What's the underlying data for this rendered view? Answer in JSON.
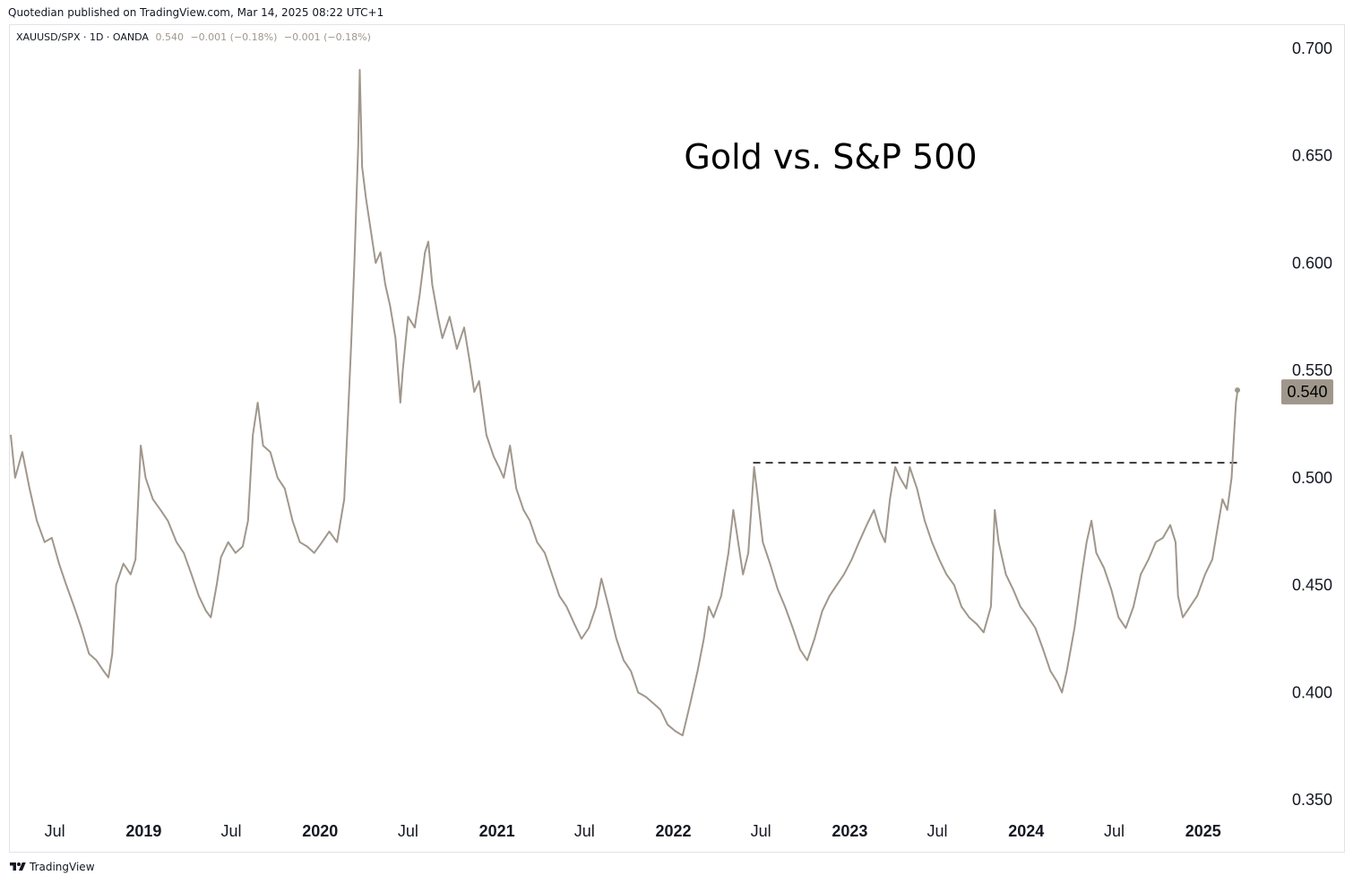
{
  "header": {
    "publisher": "Quotedian published on TradingView.com, Mar 14, 2025 08:22 UTC+1"
  },
  "legend": {
    "symbol": "XAUUSD/SPX · 1D · OANDA",
    "last": "0.540",
    "change1": "−0.001 (−0.18%)",
    "change2": "−0.001 (−0.18%)"
  },
  "footer": {
    "brand": "TradingView",
    "logo_icon": "tradingview-logo-icon"
  },
  "colors": {
    "line": "#a0978c",
    "last_badge_bg": "#a0978c",
    "axis_text": "#131722"
  },
  "chart_data": {
    "type": "line",
    "title": "Gold vs. S&P 500",
    "xlabel": "",
    "ylabel": "",
    "ylim": [
      0.33,
      0.71
    ],
    "yticks": [
      0.35,
      0.4,
      0.45,
      0.5,
      0.55,
      0.6,
      0.65,
      0.7
    ],
    "ytick_labels": [
      "0.350",
      "0.400",
      "0.450",
      "0.500",
      "0.550",
      "0.600",
      "0.650",
      "0.700"
    ],
    "xlim": [
      "2018-04-01",
      "2025-05-15"
    ],
    "xticks": [
      {
        "date": "2018-07-01",
        "label": "Jul",
        "bold": false
      },
      {
        "date": "2019-01-01",
        "label": "2019",
        "bold": true
      },
      {
        "date": "2019-07-01",
        "label": "Jul",
        "bold": false
      },
      {
        "date": "2020-01-01",
        "label": "2020",
        "bold": true
      },
      {
        "date": "2020-07-01",
        "label": "Jul",
        "bold": false
      },
      {
        "date": "2021-01-01",
        "label": "2021",
        "bold": true
      },
      {
        "date": "2021-07-01",
        "label": "Jul",
        "bold": false
      },
      {
        "date": "2022-01-01",
        "label": "2022",
        "bold": true
      },
      {
        "date": "2022-07-01",
        "label": "Jul",
        "bold": false
      },
      {
        "date": "2023-01-01",
        "label": "2023",
        "bold": true
      },
      {
        "date": "2023-07-01",
        "label": "Jul",
        "bold": false
      },
      {
        "date": "2024-01-01",
        "label": "2024",
        "bold": true
      },
      {
        "date": "2024-07-01",
        "label": "Jul",
        "bold": false
      },
      {
        "date": "2025-01-01",
        "label": "2025",
        "bold": true
      }
    ],
    "last_value_label": "0.540",
    "reference_line": {
      "y": 0.507,
      "x_start": "2022-06-15",
      "x_end": "2025-03-20",
      "style": "dashed"
    },
    "series": [
      {
        "points": [
          [
            "2018-04-01",
            0.52
          ],
          [
            "2018-04-10",
            0.5
          ],
          [
            "2018-04-25",
            0.512
          ],
          [
            "2018-05-10",
            0.495
          ],
          [
            "2018-05-25",
            0.48
          ],
          [
            "2018-06-10",
            0.47
          ],
          [
            "2018-06-25",
            0.472
          ],
          [
            "2018-07-10",
            0.46
          ],
          [
            "2018-07-25",
            0.45
          ],
          [
            "2018-08-10",
            0.44
          ],
          [
            "2018-08-25",
            0.43
          ],
          [
            "2018-09-10",
            0.418
          ],
          [
            "2018-09-25",
            0.415
          ],
          [
            "2018-10-10",
            0.41
          ],
          [
            "2018-10-20",
            0.407
          ],
          [
            "2018-10-28",
            0.418
          ],
          [
            "2018-11-05",
            0.45
          ],
          [
            "2018-11-20",
            0.46
          ],
          [
            "2018-12-05",
            0.455
          ],
          [
            "2018-12-15",
            0.462
          ],
          [
            "2018-12-26",
            0.515
          ],
          [
            "2019-01-05",
            0.5
          ],
          [
            "2019-01-20",
            0.49
          ],
          [
            "2019-02-05",
            0.485
          ],
          [
            "2019-02-20",
            0.48
          ],
          [
            "2019-03-10",
            0.47
          ],
          [
            "2019-03-25",
            0.465
          ],
          [
            "2019-04-10",
            0.455
          ],
          [
            "2019-04-25",
            0.445
          ],
          [
            "2019-05-10",
            0.438
          ],
          [
            "2019-05-20",
            0.435
          ],
          [
            "2019-06-01",
            0.45
          ],
          [
            "2019-06-10",
            0.463
          ],
          [
            "2019-06-25",
            0.47
          ],
          [
            "2019-07-10",
            0.465
          ],
          [
            "2019-07-25",
            0.468
          ],
          [
            "2019-08-05",
            0.48
          ],
          [
            "2019-08-15",
            0.52
          ],
          [
            "2019-08-25",
            0.535
          ],
          [
            "2019-09-05",
            0.515
          ],
          [
            "2019-09-20",
            0.512
          ],
          [
            "2019-10-05",
            0.5
          ],
          [
            "2019-10-20",
            0.495
          ],
          [
            "2019-11-05",
            0.48
          ],
          [
            "2019-11-20",
            0.47
          ],
          [
            "2019-12-05",
            0.468
          ],
          [
            "2019-12-20",
            0.465
          ],
          [
            "2020-01-05",
            0.47
          ],
          [
            "2020-01-20",
            0.475
          ],
          [
            "2020-02-05",
            0.47
          ],
          [
            "2020-02-20",
            0.49
          ],
          [
            "2020-02-28",
            0.53
          ],
          [
            "2020-03-05",
            0.56
          ],
          [
            "2020-03-12",
            0.6
          ],
          [
            "2020-03-20",
            0.655
          ],
          [
            "2020-03-23",
            0.69
          ],
          [
            "2020-03-28",
            0.645
          ],
          [
            "2020-04-05",
            0.63
          ],
          [
            "2020-04-15",
            0.615
          ],
          [
            "2020-04-25",
            0.6
          ],
          [
            "2020-05-05",
            0.605
          ],
          [
            "2020-05-15",
            0.59
          ],
          [
            "2020-05-25",
            0.58
          ],
          [
            "2020-06-05",
            0.565
          ],
          [
            "2020-06-15",
            0.535
          ],
          [
            "2020-06-20",
            0.55
          ],
          [
            "2020-07-01",
            0.575
          ],
          [
            "2020-07-15",
            0.57
          ],
          [
            "2020-07-25",
            0.585
          ],
          [
            "2020-08-05",
            0.605
          ],
          [
            "2020-08-12",
            0.61
          ],
          [
            "2020-08-20",
            0.59
          ],
          [
            "2020-09-01",
            0.575
          ],
          [
            "2020-09-10",
            0.565
          ],
          [
            "2020-09-25",
            0.575
          ],
          [
            "2020-10-10",
            0.56
          ],
          [
            "2020-10-25",
            0.57
          ],
          [
            "2020-11-05",
            0.555
          ],
          [
            "2020-11-15",
            0.54
          ],
          [
            "2020-11-25",
            0.545
          ],
          [
            "2020-12-10",
            0.52
          ],
          [
            "2020-12-25",
            0.51
          ],
          [
            "2021-01-05",
            0.505
          ],
          [
            "2021-01-15",
            0.5
          ],
          [
            "2021-01-28",
            0.515
          ],
          [
            "2021-02-10",
            0.495
          ],
          [
            "2021-02-25",
            0.485
          ],
          [
            "2021-03-10",
            0.48
          ],
          [
            "2021-03-25",
            0.47
          ],
          [
            "2021-04-10",
            0.465
          ],
          [
            "2021-04-25",
            0.455
          ],
          [
            "2021-05-10",
            0.445
          ],
          [
            "2021-05-25",
            0.44
          ],
          [
            "2021-06-10",
            0.432
          ],
          [
            "2021-06-25",
            0.425
          ],
          [
            "2021-07-10",
            0.43
          ],
          [
            "2021-07-25",
            0.44
          ],
          [
            "2021-08-05",
            0.453
          ],
          [
            "2021-08-20",
            0.44
          ],
          [
            "2021-09-05",
            0.425
          ],
          [
            "2021-09-20",
            0.415
          ],
          [
            "2021-10-05",
            0.41
          ],
          [
            "2021-10-20",
            0.4
          ],
          [
            "2021-11-05",
            0.398
          ],
          [
            "2021-11-20",
            0.395
          ],
          [
            "2021-12-05",
            0.392
          ],
          [
            "2021-12-20",
            0.385
          ],
          [
            "2022-01-05",
            0.382
          ],
          [
            "2022-01-20",
            0.38
          ],
          [
            "2022-02-05",
            0.395
          ],
          [
            "2022-02-20",
            0.41
          ],
          [
            "2022-03-05",
            0.425
          ],
          [
            "2022-03-15",
            0.44
          ],
          [
            "2022-03-25",
            0.435
          ],
          [
            "2022-04-10",
            0.445
          ],
          [
            "2022-04-25",
            0.465
          ],
          [
            "2022-05-05",
            0.485
          ],
          [
            "2022-05-15",
            0.47
          ],
          [
            "2022-05-25",
            0.455
          ],
          [
            "2022-06-05",
            0.465
          ],
          [
            "2022-06-17",
            0.505
          ],
          [
            "2022-06-25",
            0.49
          ],
          [
            "2022-07-05",
            0.47
          ],
          [
            "2022-07-20",
            0.46
          ],
          [
            "2022-08-05",
            0.448
          ],
          [
            "2022-08-20",
            0.44
          ],
          [
            "2022-09-05",
            0.43
          ],
          [
            "2022-09-20",
            0.42
          ],
          [
            "2022-10-05",
            0.415
          ],
          [
            "2022-10-20",
            0.425
          ],
          [
            "2022-11-05",
            0.438
          ],
          [
            "2022-11-20",
            0.445
          ],
          [
            "2022-12-05",
            0.45
          ],
          [
            "2022-12-20",
            0.455
          ],
          [
            "2023-01-05",
            0.462
          ],
          [
            "2023-01-20",
            0.47
          ],
          [
            "2023-02-05",
            0.478
          ],
          [
            "2023-02-20",
            0.485
          ],
          [
            "2023-03-05",
            0.475
          ],
          [
            "2023-03-15",
            0.47
          ],
          [
            "2023-03-25",
            0.49
          ],
          [
            "2023-04-05",
            0.505
          ],
          [
            "2023-04-15",
            0.5
          ],
          [
            "2023-04-28",
            0.495
          ],
          [
            "2023-05-05",
            0.505
          ],
          [
            "2023-05-20",
            0.495
          ],
          [
            "2023-06-05",
            0.48
          ],
          [
            "2023-06-20",
            0.47
          ],
          [
            "2023-07-05",
            0.462
          ],
          [
            "2023-07-20",
            0.455
          ],
          [
            "2023-08-05",
            0.45
          ],
          [
            "2023-08-20",
            0.44
          ],
          [
            "2023-09-05",
            0.435
          ],
          [
            "2023-09-20",
            0.432
          ],
          [
            "2023-10-05",
            0.428
          ],
          [
            "2023-10-20",
            0.44
          ],
          [
            "2023-10-28",
            0.485
          ],
          [
            "2023-11-05",
            0.47
          ],
          [
            "2023-11-20",
            0.455
          ],
          [
            "2023-12-05",
            0.448
          ],
          [
            "2023-12-20",
            0.44
          ],
          [
            "2024-01-05",
            0.435
          ],
          [
            "2024-01-20",
            0.43
          ],
          [
            "2024-02-05",
            0.42
          ],
          [
            "2024-02-20",
            0.41
          ],
          [
            "2024-03-05",
            0.405
          ],
          [
            "2024-03-15",
            0.4
          ],
          [
            "2024-03-25",
            0.41
          ],
          [
            "2024-04-10",
            0.43
          ],
          [
            "2024-04-25",
            0.455
          ],
          [
            "2024-05-05",
            0.47
          ],
          [
            "2024-05-15",
            0.48
          ],
          [
            "2024-05-25",
            0.465
          ],
          [
            "2024-06-10",
            0.458
          ],
          [
            "2024-06-25",
            0.448
          ],
          [
            "2024-07-10",
            0.435
          ],
          [
            "2024-07-25",
            0.43
          ],
          [
            "2024-08-10",
            0.44
          ],
          [
            "2024-08-25",
            0.455
          ],
          [
            "2024-09-10",
            0.462
          ],
          [
            "2024-09-25",
            0.47
          ],
          [
            "2024-10-10",
            0.472
          ],
          [
            "2024-10-25",
            0.478
          ],
          [
            "2024-11-05",
            0.47
          ],
          [
            "2024-11-10",
            0.445
          ],
          [
            "2024-11-20",
            0.435
          ],
          [
            "2024-12-05",
            0.44
          ],
          [
            "2024-12-20",
            0.445
          ],
          [
            "2025-01-05",
            0.455
          ],
          [
            "2025-01-20",
            0.462
          ],
          [
            "2025-02-01",
            0.478
          ],
          [
            "2025-02-10",
            0.49
          ],
          [
            "2025-02-20",
            0.485
          ],
          [
            "2025-03-01",
            0.5
          ],
          [
            "2025-03-06",
            0.52
          ],
          [
            "2025-03-10",
            0.535
          ],
          [
            "2025-03-13",
            0.54
          ]
        ]
      }
    ]
  }
}
